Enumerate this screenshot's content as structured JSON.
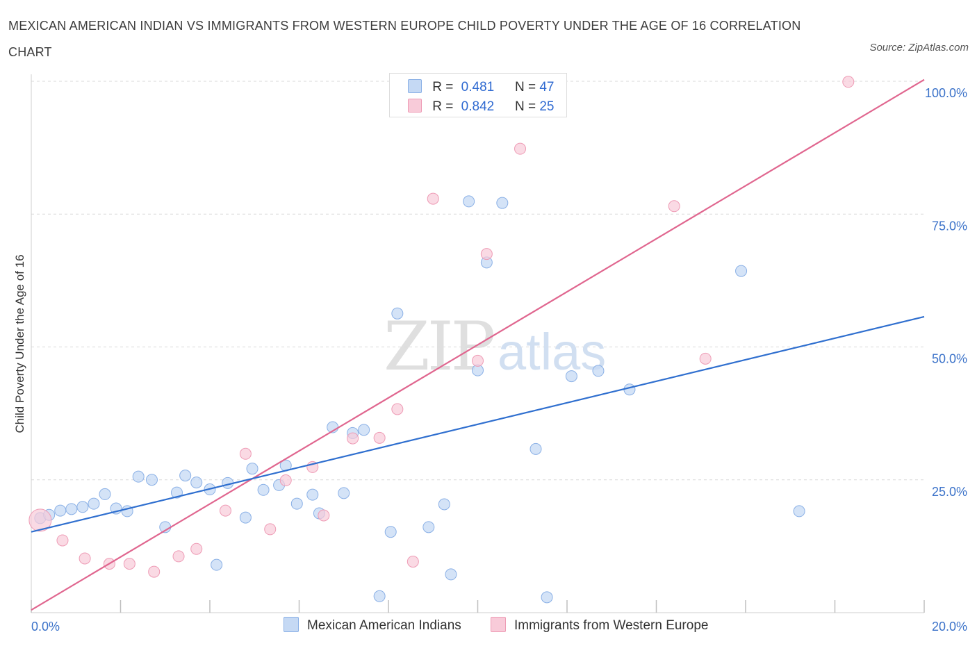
{
  "title": "MEXICAN AMERICAN INDIAN VS IMMIGRANTS FROM WESTERN EUROPE CHILD POVERTY UNDER THE AGE OF 16 CORRELATION CHART",
  "source": "Source: ZipAtlas.com",
  "watermark": {
    "zip": "ZIP",
    "atlas": "atlas"
  },
  "legend": {
    "rows": [
      {
        "r_label": "R = ",
        "r_value": "0.481",
        "n_label": "N = ",
        "n_value": "47"
      },
      {
        "r_label": "R = ",
        "r_value": "0.842",
        "n_label": "N = ",
        "n_value": "25"
      }
    ]
  },
  "colors": {
    "blue_fill": "#c5d9f4",
    "blue_stroke": "#8ab0e6",
    "blue_line": "#2f6fcf",
    "pink_fill": "#f8cbd9",
    "pink_stroke": "#ee9bb5",
    "pink_line": "#e0668f",
    "grid": "#d9d9d9",
    "tick_text": "#3b72c9"
  },
  "chart_data": {
    "type": "scatter",
    "title": "MEXICAN AMERICAN INDIAN VS IMMIGRANTS FROM WESTERN EUROPE CHILD POVERTY UNDER THE AGE OF 16 CORRELATION CHART",
    "xlabel": "",
    "ylabel": "Child Poverty Under the Age of 16",
    "xlim": [
      0,
      20
    ],
    "ylim": [
      0,
      100
    ],
    "x_tick_labels": [
      "0.0%",
      "20.0%"
    ],
    "y_ticks": [
      25,
      50,
      75,
      100
    ],
    "y_tick_labels": [
      "25.0%",
      "50.0%",
      "75.0%",
      "100.0%"
    ],
    "grid": true,
    "legend_position": "top-center",
    "series": [
      {
        "name": "Mexican American Indians",
        "R": 0.481,
        "N": 47,
        "trend": {
          "x": [
            0,
            20
          ],
          "y": [
            15.2,
            55.7
          ]
        },
        "points": [
          [
            0.2,
            17.8
          ],
          [
            0.4,
            18.4
          ],
          [
            0.65,
            19.2
          ],
          [
            0.9,
            19.5
          ],
          [
            1.15,
            19.9
          ],
          [
            1.4,
            20.5
          ],
          [
            1.65,
            22.3
          ],
          [
            1.9,
            19.6
          ],
          [
            2.15,
            19.1
          ],
          [
            2.4,
            25.6
          ],
          [
            2.7,
            25.0
          ],
          [
            3.0,
            16.1
          ],
          [
            3.26,
            22.6
          ],
          [
            3.45,
            25.8
          ],
          [
            3.7,
            24.5
          ],
          [
            4.0,
            23.2
          ],
          [
            4.15,
            9.0
          ],
          [
            4.4,
            24.4
          ],
          [
            4.8,
            17.9
          ],
          [
            4.95,
            27.1
          ],
          [
            5.2,
            23.1
          ],
          [
            5.55,
            24.0
          ],
          [
            5.7,
            27.7
          ],
          [
            5.95,
            20.5
          ],
          [
            6.3,
            22.2
          ],
          [
            6.45,
            18.7
          ],
          [
            7.0,
            22.5
          ],
          [
            6.75,
            34.9
          ],
          [
            7.2,
            33.8
          ],
          [
            7.45,
            34.4
          ],
          [
            7.8,
            3.1
          ],
          [
            8.05,
            15.2
          ],
          [
            8.2,
            56.3
          ],
          [
            8.9,
            16.1
          ],
          [
            9.25,
            20.4
          ],
          [
            9.4,
            7.2
          ],
          [
            9.8,
            77.4
          ],
          [
            10.0,
            45.6
          ],
          [
            10.2,
            65.9
          ],
          [
            10.55,
            77.1
          ],
          [
            11.3,
            30.8
          ],
          [
            11.55,
            2.9
          ],
          [
            12.1,
            44.5
          ],
          [
            12.7,
            45.5
          ],
          [
            13.4,
            42.0
          ],
          [
            17.2,
            19.1
          ],
          [
            15.9,
            64.3
          ]
        ]
      },
      {
        "name": "Immigrants from Western Europe",
        "R": 0.842,
        "N": 25,
        "trend": {
          "x": [
            0,
            20
          ],
          "y": [
            0.5,
            100.3
          ]
        },
        "points": [
          [
            0.2,
            17.4
          ],
          [
            0.7,
            13.6
          ],
          [
            1.2,
            10.2
          ],
          [
            1.75,
            9.2
          ],
          [
            2.2,
            9.2
          ],
          [
            2.75,
            7.7
          ],
          [
            3.3,
            10.6
          ],
          [
            3.7,
            12.0
          ],
          [
            4.35,
            19.2
          ],
          [
            4.8,
            29.9
          ],
          [
            5.35,
            15.7
          ],
          [
            5.7,
            24.9
          ],
          [
            6.3,
            27.4
          ],
          [
            6.55,
            18.3
          ],
          [
            7.2,
            32.8
          ],
          [
            7.8,
            32.9
          ],
          [
            8.2,
            38.3
          ],
          [
            8.55,
            9.6
          ],
          [
            9.0,
            77.9
          ],
          [
            10.0,
            47.4
          ],
          [
            10.2,
            67.5
          ],
          [
            10.95,
            87.3
          ],
          [
            14.4,
            76.5
          ],
          [
            15.1,
            47.8
          ],
          [
            18.3,
            99.9
          ]
        ]
      }
    ]
  }
}
